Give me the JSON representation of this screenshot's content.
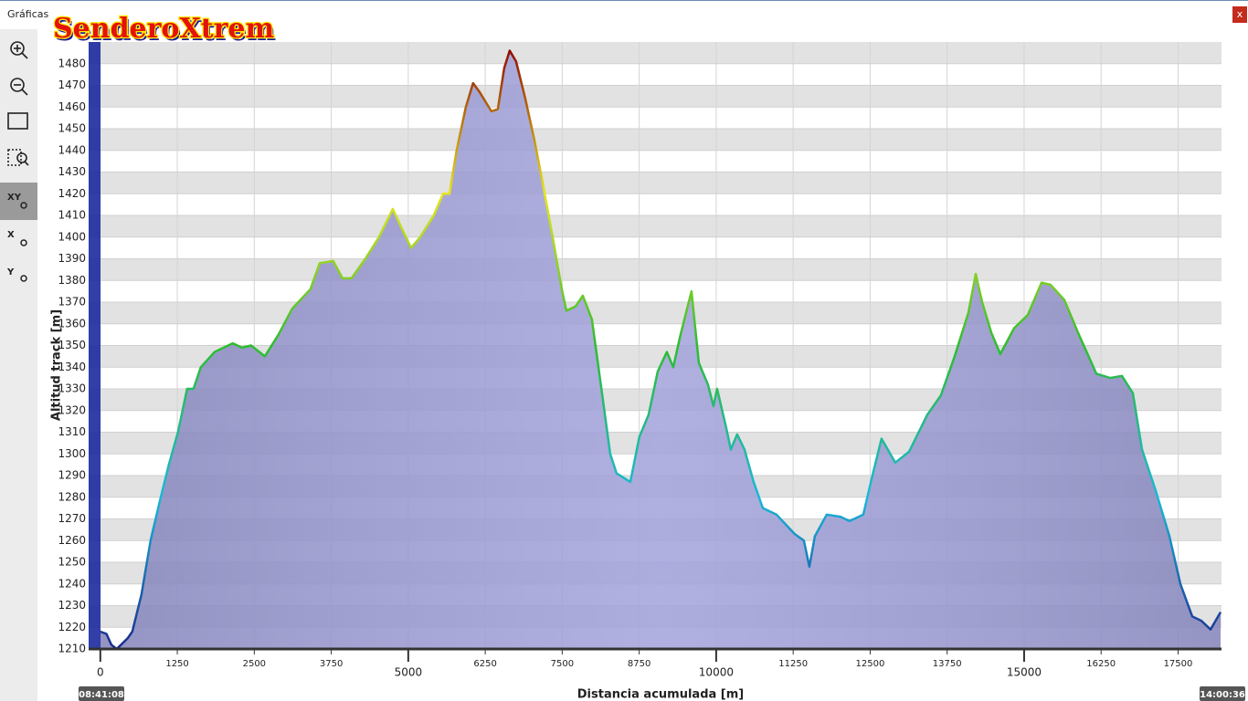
{
  "window": {
    "title": "Gráficas",
    "logo": "SenderoXtrem",
    "close": "x",
    "toolbar": [
      "XY",
      "X",
      "Y"
    ],
    "start_time": "08:41:08",
    "end_time": "14:00:36"
  },
  "chart_data": {
    "type": "area",
    "xlabel": "Distancia acumulada [m]",
    "ylabel": "Altitud track [m]",
    "xlim": [
      -190,
      18205
    ],
    "ylim": [
      1210,
      1490
    ],
    "xticks": [
      0,
      1250,
      2500,
      3750,
      5000,
      6250,
      7500,
      8750,
      10000,
      11250,
      12500,
      13750,
      15000,
      16250,
      17500
    ],
    "yticks": [
      1210,
      1220,
      1230,
      1240,
      1250,
      1260,
      1270,
      1280,
      1290,
      1300,
      1310,
      1320,
      1330,
      1340,
      1350,
      1360,
      1370,
      1380,
      1390,
      1400,
      1410,
      1420,
      1430,
      1440,
      1450,
      1460,
      1470,
      1480
    ],
    "grid": true,
    "fill_color": "#9a9ad8",
    "line_colorscale": [
      "#1a2a8e",
      "#1ab8d8",
      "#2ebd2e",
      "#e6e619",
      "#8b0000"
    ],
    "series": [
      {
        "name": "Altitud track [m]",
        "x": [
          0,
          100,
          178,
          267,
          445,
          519,
          668,
          816,
          964,
          1113,
          1261,
          1409,
          1513,
          1632,
          1855,
          2151,
          2300,
          2448,
          2671,
          2893,
          3116,
          3412,
          3561,
          3783,
          3932,
          4080,
          4303,
          4525,
          4748,
          4896,
          5045,
          5193,
          5415,
          5564,
          5668,
          5786,
          5935,
          6053,
          6157,
          6350,
          6454,
          6558,
          6647,
          6751,
          6899,
          7047,
          7196,
          7344,
          7493,
          7567,
          7715,
          7834,
          7982,
          8160,
          8279,
          8383,
          8605,
          8754,
          8902,
          9050,
          9199,
          9303,
          9421,
          9599,
          9718,
          9866,
          9955,
          10015,
          10163,
          10237,
          10341,
          10460,
          10608,
          10757,
          10979,
          11276,
          11424,
          11513,
          11602,
          11795,
          12018,
          12166,
          12389,
          12537,
          12685,
          12908,
          13131,
          13427,
          13650,
          13872,
          14095,
          14214,
          14318,
          14466,
          14614,
          14837,
          15059,
          15282,
          15430,
          15653,
          15875,
          16172,
          16395,
          16588,
          16766,
          16914,
          17137,
          17359,
          17537,
          17730,
          17878,
          18027,
          18190
        ],
        "values": [
          1218,
          1217,
          1212,
          1210,
          1215,
          1218,
          1235,
          1260,
          1278,
          1295,
          1310,
          1330,
          1330,
          1340,
          1347,
          1351,
          1349,
          1350,
          1345,
          1355,
          1367,
          1376,
          1388,
          1389,
          1381,
          1381,
          1390,
          1400,
          1413,
          1404,
          1395,
          1400,
          1410,
          1420,
          1420,
          1440,
          1460,
          1471,
          1467,
          1458,
          1459,
          1478,
          1486,
          1481,
          1464,
          1445,
          1423,
          1400,
          1376,
          1366,
          1368,
          1373,
          1362,
          1325,
          1300,
          1291,
          1287,
          1308,
          1318,
          1338,
          1347,
          1340,
          1355,
          1375,
          1342,
          1332,
          1322,
          1330,
          1312,
          1302,
          1309,
          1302,
          1287,
          1275,
          1272,
          1263,
          1260,
          1248,
          1262,
          1272,
          1271,
          1269,
          1272,
          1290,
          1307,
          1296,
          1301,
          1318,
          1327,
          1345,
          1365,
          1383,
          1370,
          1356,
          1346,
          1358,
          1364,
          1379,
          1378,
          1371,
          1356,
          1337,
          1335,
          1336,
          1328,
          1302,
          1283,
          1262,
          1240,
          1225,
          1223,
          1219,
          1227
        ]
      }
    ]
  }
}
